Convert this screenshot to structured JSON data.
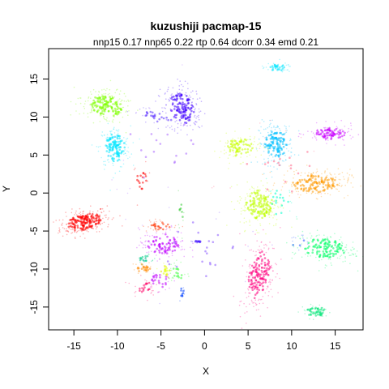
{
  "chart_data": {
    "type": "scatter",
    "title": "kuzushiji pacmap-15",
    "subtitle": "nnp15 0.17 nnp65 0.22 rtp 0.64 dcorr 0.34 emd 0.21",
    "xlabel": "X",
    "ylabel": "Y",
    "xlim": [
      -17.9,
      18.2
    ],
    "ylim": [
      -18.0,
      19.0
    ],
    "x_ticks": [
      -15,
      -10,
      -5,
      0,
      5,
      10,
      15
    ],
    "y_ticks": [
      -15,
      -10,
      -5,
      0,
      5,
      10,
      15
    ],
    "grid": false,
    "legend": "none",
    "clusters": [
      {
        "color": "#ff0000",
        "x": -13.8,
        "y": -3.8,
        "sx": 1.5,
        "sy": 0.8,
        "rot": 0.25,
        "weight": 1.0
      },
      {
        "color": "#ff0000",
        "x": -7.2,
        "y": 1.8,
        "sx": 0.5,
        "sy": 1.0,
        "rot": 0.0,
        "weight": 0.08
      },
      {
        "color": "#80ff00",
        "x": -11.3,
        "y": 11.5,
        "sx": 1.5,
        "sy": 1.0,
        "rot": -0.35,
        "weight": 0.85
      },
      {
        "color": "#00e5ff",
        "x": -10.3,
        "y": 6.0,
        "sx": 0.9,
        "sy": 1.4,
        "rot": 0.0,
        "weight": 0.7
      },
      {
        "color": "#4000ff",
        "x": -2.6,
        "y": 11.2,
        "sx": 1.0,
        "sy": 1.6,
        "rot": 0.3,
        "weight": 0.8
      },
      {
        "color": "#5a2dff",
        "x": -5.5,
        "y": 10.0,
        "sx": 1.5,
        "sy": 0.5,
        "rot": -0.4,
        "weight": 0.15
      },
      {
        "color": "#00bfff",
        "x": 8.2,
        "y": 6.5,
        "sx": 1.0,
        "sy": 1.4,
        "rot": 0.0,
        "weight": 0.75
      },
      {
        "color": "#c8ff00",
        "x": 4.0,
        "y": 6.0,
        "sx": 1.2,
        "sy": 0.9,
        "rot": 0.1,
        "weight": 0.45
      },
      {
        "color": "#c800ff",
        "x": 14.5,
        "y": 7.8,
        "sx": 1.4,
        "sy": 0.6,
        "rot": 0.0,
        "weight": 0.45
      },
      {
        "color": "#ff9900",
        "x": 12.7,
        "y": 1.3,
        "sx": 2.0,
        "sy": 0.9,
        "rot": 0.0,
        "weight": 0.85
      },
      {
        "color": "#bfff00",
        "x": 6.3,
        "y": -1.6,
        "sx": 1.2,
        "sy": 1.5,
        "rot": 0.1,
        "weight": 0.8
      },
      {
        "color": "#ff0080",
        "x": 6.3,
        "y": -10.8,
        "sx": 0.9,
        "sy": 2.4,
        "rot": -0.15,
        "weight": 0.9
      },
      {
        "color": "#00ff66",
        "x": 13.8,
        "y": -7.3,
        "sx": 1.8,
        "sy": 1.0,
        "rot": -0.1,
        "weight": 0.75
      },
      {
        "color": "#00e676",
        "x": 12.8,
        "y": -15.6,
        "sx": 0.9,
        "sy": 0.45,
        "rot": 0.0,
        "weight": 0.22
      },
      {
        "color": "#00e5ff",
        "x": 8.3,
        "y": 16.5,
        "sx": 0.9,
        "sy": 0.3,
        "rot": 0.0,
        "weight": 0.18
      },
      {
        "color": "#bf00ff",
        "x": -4.7,
        "y": -6.7,
        "sx": 1.4,
        "sy": 1.0,
        "rot": 0.0,
        "weight": 0.5
      },
      {
        "color": "#ff3300",
        "x": -5.1,
        "y": -4.3,
        "sx": 1.0,
        "sy": 0.4,
        "rot": 0.0,
        "weight": 0.15
      },
      {
        "color": "#ff8800",
        "x": -7.0,
        "y": -9.9,
        "sx": 0.6,
        "sy": 0.4,
        "rot": 0.0,
        "weight": 0.12
      },
      {
        "color": "#00cc88",
        "x": -6.8,
        "y": -8.6,
        "sx": 0.5,
        "sy": 0.4,
        "rot": 0.0,
        "weight": 0.08
      },
      {
        "color": "#ff0066",
        "x": -7.0,
        "y": -12.3,
        "sx": 0.7,
        "sy": 0.6,
        "rot": 0.0,
        "weight": 0.15
      },
      {
        "color": "#bf00ff",
        "x": -5.2,
        "y": -11.5,
        "sx": 0.7,
        "sy": 0.8,
        "rot": 0.0,
        "weight": 0.13
      },
      {
        "color": "#e6ff00",
        "x": -4.5,
        "y": -10.3,
        "sx": 0.4,
        "sy": 0.6,
        "rot": 0.0,
        "weight": 0.08
      },
      {
        "color": "#33ff33",
        "x": -3.1,
        "y": -10.5,
        "sx": 0.5,
        "sy": 0.8,
        "rot": 0.0,
        "weight": 0.11
      },
      {
        "color": "#0040ff",
        "x": -2.6,
        "y": -13.0,
        "sx": 0.2,
        "sy": 0.5,
        "rot": 0.0,
        "weight": 0.03
      },
      {
        "color": "#33cc33",
        "x": -2.7,
        "y": -2.2,
        "sx": 0.2,
        "sy": 1.2,
        "rot": 0.0,
        "weight": 0.04
      },
      {
        "color": "#3300ff",
        "x": -0.8,
        "y": -6.4,
        "sx": 0.4,
        "sy": 0.1,
        "rot": 0.0,
        "weight": 0.02
      },
      {
        "color": "#2255ff",
        "x": 10.8,
        "y": -6.7,
        "sx": 0.6,
        "sy": 0.6,
        "rot": 0.0,
        "weight": 0.05
      },
      {
        "color": "#00ffcc",
        "x": 8.7,
        "y": -1.2,
        "sx": 0.8,
        "sy": 1.4,
        "rot": 0.0,
        "weight": 0.1
      },
      {
        "color": "#8855ff",
        "x": -0.5,
        "y": -7.5,
        "sx": 3.5,
        "sy": 3.0,
        "rot": 0.0,
        "weight": 0.12
      },
      {
        "color": "#aa66ff",
        "x": -5.0,
        "y": 6.0,
        "sx": 3.0,
        "sy": 4.0,
        "rot": 0.0,
        "weight": 0.12
      },
      {
        "color": "#ff6688",
        "x": 9.0,
        "y": 3.0,
        "sx": 4.0,
        "sy": 2.5,
        "rot": 0.0,
        "weight": 0.12
      }
    ]
  }
}
